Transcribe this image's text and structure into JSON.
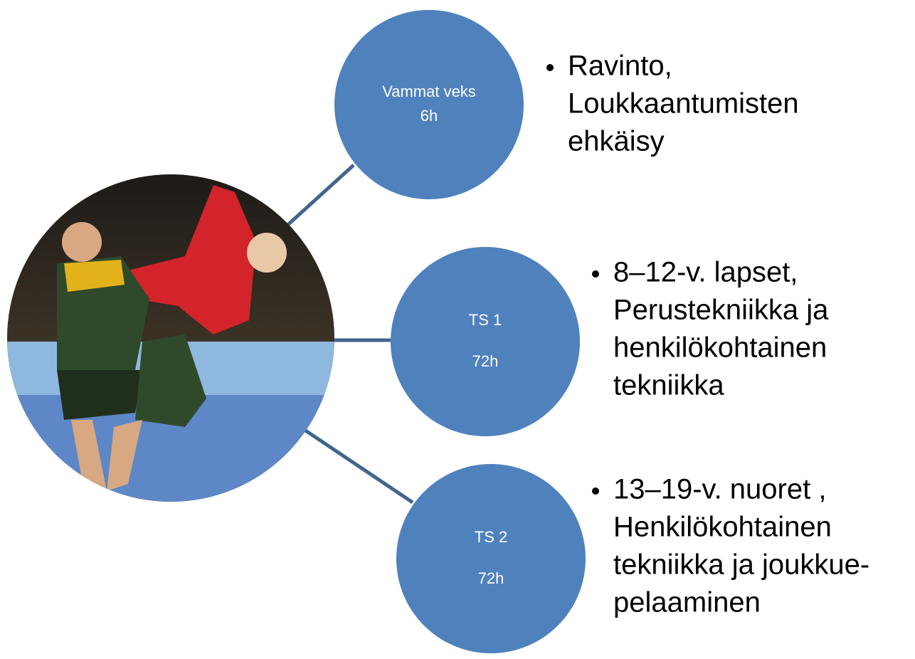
{
  "nodes": [
    {
      "label": [
        "Vammat veks",
        "6h"
      ],
      "bullet": [
        "Ravinto,",
        "Loukkaantumisten",
        "ehkäisy"
      ]
    },
    {
      "label": [
        "TS 1",
        "72h"
      ],
      "bullet": [
        "8–12-v. lapset,",
        "Perustekniikka ja",
        "henkilökohtainen",
        "tekniikka"
      ]
    },
    {
      "label": [
        "TS 2",
        "72h"
      ],
      "bullet": [
        "13–19-v. nuoret ,",
        "Henkilökohtainen",
        "tekniikka ja joukkue-",
        "pelaaminen"
      ]
    }
  ]
}
